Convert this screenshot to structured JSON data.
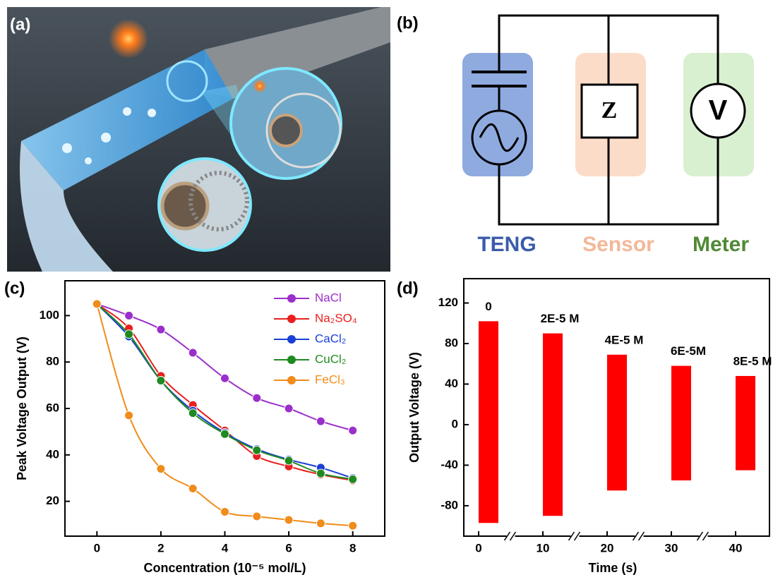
{
  "panel_labels": [
    "(a)",
    "(b)",
    "(c)",
    "(d)"
  ],
  "circuit": {
    "symbols": [
      "Z",
      "V"
    ],
    "labels": [
      "TENG",
      "Sensor",
      "Meter"
    ]
  },
  "chart_data": [
    {
      "type": "line",
      "ylabel": "Peak Voltage Output (V)",
      "xlabel": "Concentration (10⁻⁵ mol/L)",
      "x": [
        0,
        1,
        2,
        3,
        4,
        5,
        6,
        7,
        8
      ],
      "series": [
        {
          "name": "NaCl",
          "color": "#9b2fc9",
          "values": [
            105,
            100,
            94,
            84,
            73,
            64.5,
            60,
            54.5,
            50.5
          ]
        },
        {
          "name": "Na₂SO₄",
          "color": "#e8201e",
          "values": [
            105,
            94.5,
            74,
            61.5,
            50.5,
            39.5,
            35,
            31.5,
            29
          ]
        },
        {
          "name": "CaCl₂",
          "color": "#1a3fd6",
          "values": [
            105,
            91,
            72,
            59,
            49.5,
            42.5,
            38,
            34.5,
            30
          ]
        },
        {
          "name": "CuCl₂",
          "color": "#1f8a1f",
          "values": [
            105,
            92,
            72,
            58,
            49,
            42,
            37.5,
            32,
            29.5
          ]
        },
        {
          "name": "FeCl₃",
          "color": "#f08c1a",
          "values": [
            105,
            57,
            34,
            25.5,
            15.5,
            13.5,
            12,
            10.5,
            9.5
          ]
        }
      ],
      "xlim": [
        -1,
        9
      ],
      "xticks": [
        0,
        2,
        4,
        6,
        8
      ],
      "ylim": [
        5,
        115
      ],
      "yticks": [
        20,
        40,
        60,
        80,
        100
      ],
      "legend": "upper right"
    },
    {
      "type": "burst",
      "ylabel": "Output Voltage (V)",
      "xlabel": "Time (s)",
      "color": "#ff0000",
      "x": [
        0,
        10,
        20,
        30,
        40
      ],
      "annotations": [
        "0",
        "2E-5 M",
        "4E-5 M",
        "6E-5M",
        "8E-5 M"
      ],
      "high": [
        102,
        90,
        69,
        58,
        48
      ],
      "low": [
        -97,
        -90,
        -65,
        -55,
        -45
      ],
      "xticks": [
        0,
        10,
        20,
        30,
        40
      ],
      "ylim": [
        -110,
        144
      ],
      "yticks": [
        -80,
        -40,
        0,
        40,
        80,
        120
      ],
      "broken_axis": true
    }
  ]
}
